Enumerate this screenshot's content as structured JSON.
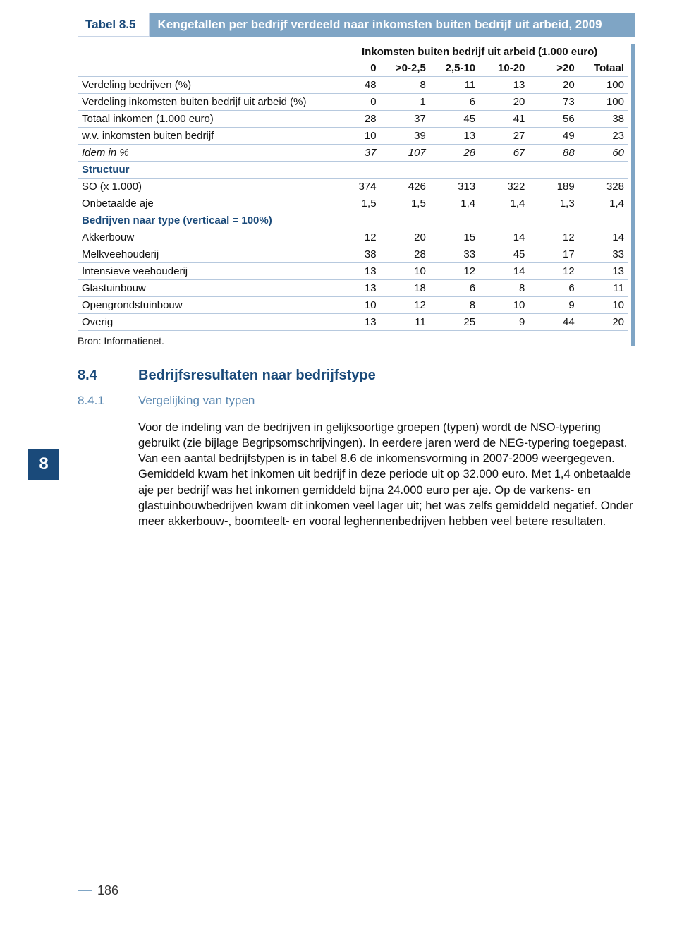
{
  "colors": {
    "accent_mid": "#7fa5c5",
    "accent_dark": "#1a4a7a",
    "accent_sub": "#5a87b0",
    "rule": "#b7c9de",
    "text": "#111111",
    "background": "#ffffff"
  },
  "typography": {
    "base_family": "Arial, Helvetica, sans-serif",
    "table_title_size_pt": 13,
    "table_body_size_pt": 11,
    "heading_size_pt": 15,
    "body_size_pt": 12
  },
  "chapter_tab": "8",
  "table_block": {
    "number": "Tabel 8.5",
    "title": "Kengetallen per bedrijf verdeeld naar inkomsten buiten bedrijf uit arbeid, 2009",
    "superheader": "Inkomsten buiten bedrijf uit arbeid (1.000 euro)",
    "columns": [
      "0",
      ">0-2,5",
      "2,5-10",
      "10-20",
      ">20",
      "Totaal"
    ],
    "col_widths_pct": [
      46,
      9,
      9,
      9,
      9,
      9,
      9
    ],
    "rows": [
      {
        "label": "Verdeling bedrijven (%)",
        "values": [
          "48",
          "8",
          "11",
          "13",
          "20",
          "100"
        ]
      },
      {
        "label": "Verdeling inkomsten buiten bedrijf uit arbeid (%)",
        "values": [
          "0",
          "1",
          "6",
          "20",
          "73",
          "100"
        ]
      },
      {
        "label": "Totaal inkomen (1.000 euro)",
        "values": [
          "28",
          "37",
          "45",
          "41",
          "56",
          "38"
        ]
      },
      {
        "label": "w.v.  inkomsten buiten bedrijf",
        "values": [
          "10",
          "39",
          "13",
          "27",
          "49",
          "23"
        ]
      },
      {
        "label": "Idem in %",
        "values": [
          "37",
          "107",
          "28",
          "67",
          "88",
          "60"
        ],
        "italic": true
      }
    ],
    "section1_label": "Structuur",
    "rows2": [
      {
        "label": "SO (x 1.000)",
        "values": [
          "374",
          "426",
          "313",
          "322",
          "189",
          "328"
        ]
      },
      {
        "label": "Onbetaalde aje",
        "values": [
          "1,5",
          "1,5",
          "1,4",
          "1,4",
          "1,3",
          "1,4"
        ]
      }
    ],
    "section2_label": "Bedrijven naar type (verticaal = 100%)",
    "rows3": [
      {
        "label": "Akkerbouw",
        "values": [
          "12",
          "20",
          "15",
          "14",
          "12",
          "14"
        ]
      },
      {
        "label": "Melkveehouderij",
        "values": [
          "38",
          "28",
          "33",
          "45",
          "17",
          "33"
        ]
      },
      {
        "label": "Intensieve veehouderij",
        "values": [
          "13",
          "10",
          "12",
          "14",
          "12",
          "13"
        ]
      },
      {
        "label": "Glastuinbouw",
        "values": [
          "13",
          "18",
          "6",
          "8",
          "6",
          "11"
        ]
      },
      {
        "label": "Opengrondstuinbouw",
        "values": [
          "10",
          "12",
          "8",
          "10",
          "9",
          "10"
        ]
      },
      {
        "label": "Overig",
        "values": [
          "13",
          "11",
          "25",
          "9",
          "44",
          "20"
        ]
      }
    ],
    "source": "Bron: Informatienet."
  },
  "heading": {
    "num": "8.4",
    "text": "Bedrijfsresultaten naar bedrijfstype"
  },
  "subheading": {
    "num": "8.4.1",
    "text": "Vergelijking van typen"
  },
  "paragraph": "Voor de indeling van de bedrijven in gelijksoortige groepen (typen) wordt de NSO-typering gebruikt (zie bijlage Begripsomschrijvingen). In eerdere jaren werd de NEG-typering toegepast. Van een aantal bedrijfstypen is in tabel 8.6 de inkomensvorming in 2007-2009 weergegeven. Gemiddeld kwam het inkomen uit bedrijf in deze periode uit op 32.000 euro. Met 1,4 onbetaalde aje per bedrijf was het inkomen gemiddeld bijna 24.000 euro per aje. Op de varkens- en glastuinbouwbedrijven kwam dit inkomen veel lager uit; het was zelfs gemiddeld negatief. Onder meer akkerbouw-, boomteelt- en vooral leghennenbedrijven hebben veel betere resultaten.",
  "page_number": "186"
}
